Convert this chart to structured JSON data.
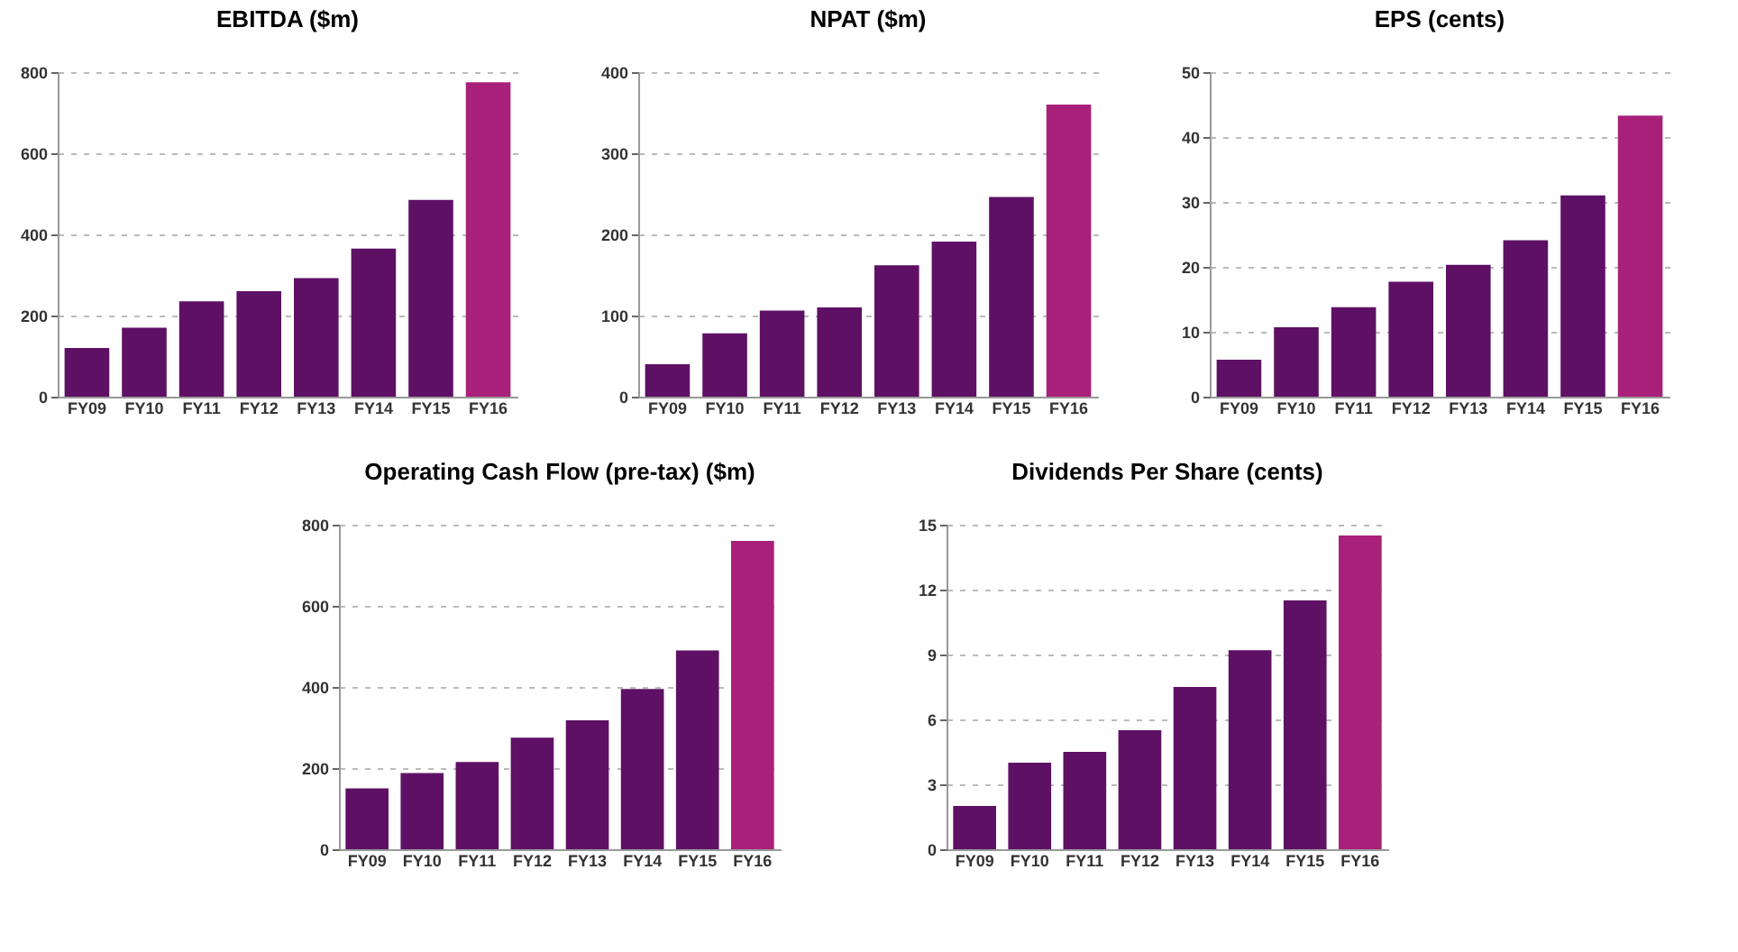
{
  "chart_data": [
    {
      "type": "bar",
      "title": "EBITDA ($m)",
      "categories": [
        "FY09",
        "FY10",
        "FY11",
        "FY12",
        "FY13",
        "FY14",
        "FY15",
        "FY16"
      ],
      "values": [
        120,
        170,
        235,
        260,
        292,
        365,
        485,
        775
      ],
      "colors": [
        "#5e1065",
        "#5e1065",
        "#5e1065",
        "#5e1065",
        "#5e1065",
        "#5e1065",
        "#5e1065",
        "#a9207a"
      ],
      "ylim": [
        0,
        800
      ],
      "yticks": [
        0,
        200,
        400,
        600,
        800
      ],
      "grid": "y"
    },
    {
      "type": "bar",
      "title": "NPAT ($m)",
      "categories": [
        "FY09",
        "FY10",
        "FY11",
        "FY12",
        "FY13",
        "FY14",
        "FY15",
        "FY16"
      ],
      "values": [
        40,
        78,
        106,
        110,
        162,
        191,
        246,
        360
      ],
      "colors": [
        "#5e1065",
        "#5e1065",
        "#5e1065",
        "#5e1065",
        "#5e1065",
        "#5e1065",
        "#5e1065",
        "#a9207a"
      ],
      "ylim": [
        0,
        400
      ],
      "yticks": [
        0,
        100,
        200,
        300,
        400
      ],
      "grid": "y"
    },
    {
      "type": "bar",
      "title": "EPS (cents)",
      "categories": [
        "FY09",
        "FY10",
        "FY11",
        "FY12",
        "FY13",
        "FY14",
        "FY15",
        "FY16"
      ],
      "values": [
        5.7,
        10.7,
        13.8,
        17.7,
        20.3,
        24.1,
        31,
        43.3
      ],
      "colors": [
        "#5e1065",
        "#5e1065",
        "#5e1065",
        "#5e1065",
        "#5e1065",
        "#5e1065",
        "#5e1065",
        "#a9207a"
      ],
      "ylim": [
        0,
        50
      ],
      "yticks": [
        0,
        10,
        20,
        30,
        40,
        50
      ],
      "grid": "y"
    },
    {
      "type": "bar",
      "title": "Operating Cash Flow (pre-tax) ($m)",
      "categories": [
        "FY09",
        "FY10",
        "FY11",
        "FY12",
        "FY13",
        "FY14",
        "FY15",
        "FY16"
      ],
      "values": [
        150,
        188,
        215,
        275,
        318,
        395,
        490,
        760
      ],
      "colors": [
        "#5e1065",
        "#5e1065",
        "#5e1065",
        "#5e1065",
        "#5e1065",
        "#5e1065",
        "#5e1065",
        "#a9207a"
      ],
      "ylim": [
        0,
        800
      ],
      "yticks": [
        0,
        200,
        400,
        600,
        800
      ],
      "grid": "y"
    },
    {
      "type": "bar",
      "title": "Dividends Per Share (cents)",
      "categories": [
        "FY09",
        "FY10",
        "FY11",
        "FY12",
        "FY13",
        "FY14",
        "FY15",
        "FY16"
      ],
      "values": [
        2,
        4,
        4.5,
        5.5,
        7.5,
        9.2,
        11.5,
        14.5
      ],
      "colors": [
        "#5e1065",
        "#5e1065",
        "#5e1065",
        "#5e1065",
        "#5e1065",
        "#5e1065",
        "#5e1065",
        "#a9207a"
      ],
      "ylim": [
        0,
        15
      ],
      "yticks": [
        0,
        3,
        6,
        9,
        12,
        15
      ],
      "grid": "y"
    }
  ]
}
